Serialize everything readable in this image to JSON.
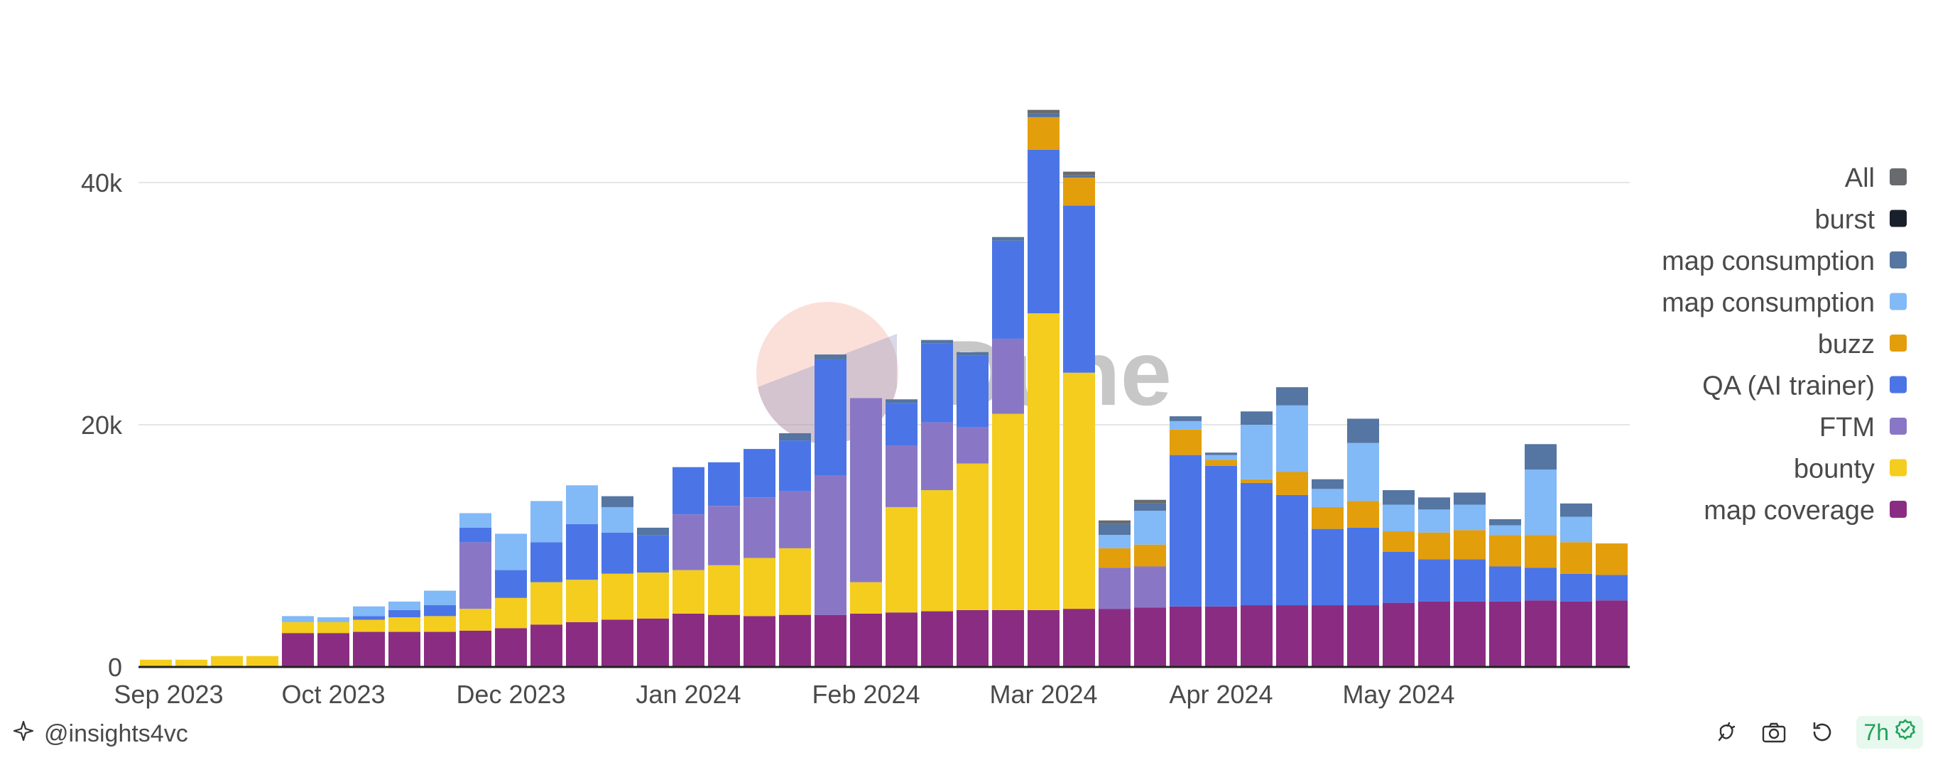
{
  "chart_data": {
    "type": "bar",
    "stacked": true,
    "title": "",
    "xlabel": "",
    "ylabel": "",
    "ylim": [
      0,
      52000
    ],
    "y_ticks": [
      0,
      20000,
      40000
    ],
    "y_tick_labels": [
      "0",
      "20k",
      "40k"
    ],
    "x_tick_labels": [
      "Sep 2023",
      "Oct 2023",
      "Dec 2023",
      "Jan 2024",
      "Feb 2024",
      "Mar 2024",
      "Apr 2024",
      "May 2024"
    ],
    "x_tick_bar_index": [
      0,
      5,
      10,
      15,
      20,
      25,
      30,
      35
    ],
    "grid": "horizontal",
    "legend_position": "right",
    "categories": [
      "2023-09-01",
      "2023-09-08",
      "2023-09-15",
      "2023-09-22",
      "2023-09-29",
      "2023-10-06",
      "2023-10-13",
      "2023-10-20",
      "2023-10-27",
      "2023-11-03",
      "2023-11-10",
      "2023-11-17",
      "2023-11-24",
      "2023-12-01",
      "2023-12-08",
      "2023-12-15",
      "2023-12-22",
      "2023-12-29",
      "2024-01-05",
      "2024-01-12",
      "2024-01-19",
      "2024-01-26",
      "2024-02-02",
      "2024-02-09",
      "2024-02-16",
      "2024-02-23",
      "2024-03-01",
      "2024-03-08",
      "2024-03-15",
      "2024-03-22",
      "2024-03-29",
      "2024-04-05",
      "2024-04-12",
      "2024-04-19",
      "2024-04-26",
      "2024-05-03",
      "2024-05-10",
      "2024-05-17",
      "2024-05-24",
      "2024-05-31",
      "2024-06-07",
      "2024-06-14"
    ],
    "series": [
      {
        "name": "map coverage",
        "color": "#8a2d82",
        "values": [
          0,
          0,
          0,
          0,
          2800,
          2800,
          2900,
          2900,
          2900,
          3000,
          3200,
          3500,
          3700,
          3900,
          4000,
          4400,
          4300,
          4200,
          4300,
          4300,
          4400,
          4500,
          4600,
          4700,
          4700,
          4700,
          4800,
          4800,
          4900,
          5000,
          5000,
          5100,
          5100,
          5100,
          5100,
          5300,
          5400,
          5400,
          5400,
          5500,
          5400,
          5500
        ]
      },
      {
        "name": "bounty",
        "color": "#f4cd1e",
        "values": [
          600,
          600,
          900,
          900,
          900,
          900,
          1000,
          1200,
          1300,
          1800,
          2500,
          3500,
          3500,
          3800,
          3800,
          3600,
          4100,
          4800,
          5500,
          0,
          2600,
          8700,
          10000,
          12100,
          16200,
          24500,
          19500,
          0,
          0,
          0,
          0,
          0,
          0,
          0,
          0,
          0,
          0,
          0,
          0,
          0,
          0,
          0
        ]
      },
      {
        "name": "FTM",
        "color": "#8977c6",
        "values": [
          0,
          0,
          0,
          0,
          0,
          0,
          0,
          0,
          0,
          5500,
          0,
          0,
          0,
          0,
          0,
          4600,
          4900,
          5000,
          4700,
          11500,
          15200,
          5100,
          5600,
          3000,
          6200,
          0,
          0,
          3400,
          3400,
          0,
          0,
          0,
          0,
          0,
          0,
          0,
          0,
          0,
          0,
          0,
          0,
          0
        ]
      },
      {
        "name": "QA (AI trainer)",
        "color": "#4b75e6",
        "values": [
          0,
          0,
          0,
          0,
          0,
          0,
          300,
          600,
          900,
          1200,
          2300,
          3300,
          4600,
          3400,
          3100,
          3900,
          3600,
          4000,
          4200,
          9600,
          0,
          3500,
          6500,
          5900,
          8100,
          13500,
          13800,
          0,
          0,
          12500,
          11600,
          10100,
          9100,
          6300,
          6400,
          4200,
          3500,
          3500,
          2900,
          2700,
          2300,
          2100
        ]
      },
      {
        "name": "buzz",
        "color": "#e39e0b",
        "values": [
          0,
          0,
          0,
          0,
          0,
          0,
          0,
          0,
          0,
          0,
          0,
          0,
          0,
          0,
          0,
          0,
          0,
          0,
          0,
          0,
          0,
          0,
          0,
          0,
          0,
          2700,
          2300,
          1600,
          1800,
          2100,
          500,
          300,
          1900,
          1800,
          2200,
          1700,
          2200,
          2400,
          2600,
          2700,
          2600,
          2600
        ]
      },
      {
        "name": "map consumption",
        "color": "#82b9f7",
        "values": [
          0,
          0,
          0,
          0,
          500,
          400,
          800,
          700,
          1200,
          1200,
          3000,
          3400,
          3200,
          2100,
          0,
          0,
          0,
          0,
          0,
          0,
          0,
          0,
          0,
          0,
          0,
          0,
          0,
          1100,
          2800,
          700,
          400,
          4500,
          5500,
          1500,
          4800,
          2200,
          1900,
          2100,
          800,
          5400,
          2100,
          0
        ]
      },
      {
        "name": "map consumption",
        "color": "#5575a2",
        "values": [
          0,
          0,
          0,
          0,
          0,
          0,
          0,
          0,
          0,
          0,
          0,
          0,
          0,
          900,
          600,
          0,
          0,
          0,
          600,
          400,
          0,
          300,
          300,
          300,
          300,
          300,
          200,
          900,
          600,
          400,
          200,
          1100,
          1500,
          800,
          2000,
          1200,
          1000,
          1000,
          500,
          2100,
          1100,
          0
        ]
      },
      {
        "name": "burst",
        "color": "#1a202b",
        "values": [
          0,
          0,
          0,
          0,
          0,
          0,
          0,
          0,
          0,
          0,
          0,
          0,
          0,
          0,
          0,
          0,
          0,
          0,
          0,
          0,
          0,
          0,
          0,
          0,
          0,
          0,
          0,
          0,
          0,
          0,
          0,
          0,
          0,
          0,
          0,
          0,
          0,
          0,
          0,
          0,
          0,
          0
        ]
      },
      {
        "name": "All",
        "color": "#686a6e",
        "values": [
          0,
          0,
          0,
          0,
          0,
          0,
          0,
          0,
          0,
          0,
          0,
          0,
          0,
          0,
          0,
          0,
          0,
          0,
          0,
          0,
          0,
          0,
          0,
          0,
          0,
          300,
          300,
          300,
          300,
          0,
          0,
          0,
          0,
          0,
          0,
          0,
          0,
          0,
          0,
          0,
          0,
          0
        ]
      }
    ],
    "legend": [
      {
        "label": "All",
        "color": "#686a6e"
      },
      {
        "label": "burst",
        "color": "#1a202b"
      },
      {
        "label": "map consumption",
        "color": "#5575a2"
      },
      {
        "label": "map consumption",
        "color": "#82b9f7"
      },
      {
        "label": "buzz",
        "color": "#e39e0b"
      },
      {
        "label": "QA (AI trainer)",
        "color": "#4b75e6"
      },
      {
        "label": "FTM",
        "color": "#8977c6"
      },
      {
        "label": "bounty",
        "color": "#f4cd1e"
      },
      {
        "label": "map coverage",
        "color": "#8a2d82"
      }
    ]
  },
  "watermark": {
    "text": "Dune"
  },
  "footer": {
    "username": "@insights4vc",
    "freshness": "7h",
    "icons": [
      "bug-icon",
      "camera-icon",
      "refresh-icon",
      "check-circle-icon"
    ]
  }
}
